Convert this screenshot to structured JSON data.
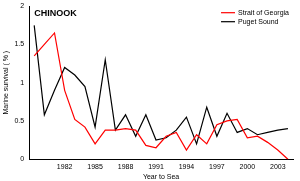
{
  "chart_data": {
    "type": "line",
    "title": "CHINOOK",
    "x_label": "Year to Sea",
    "y_label": "Marine survival ( % )",
    "x": [
      1979,
      1980,
      1981,
      1982,
      1983,
      1984,
      1985,
      1986,
      1987,
      1988,
      1989,
      1990,
      1991,
      1992,
      1993,
      1994,
      1995,
      1996,
      1997,
      1998,
      1999,
      2000,
      2001,
      2002,
      2003,
      2004
    ],
    "series": [
      {
        "name": "Strait of Georgia",
        "color": "#ff0000",
        "values": [
          1.35,
          1.5,
          1.65,
          0.9,
          0.52,
          0.42,
          0.2,
          0.38,
          0.38,
          0.4,
          0.38,
          0.18,
          0.15,
          0.3,
          0.35,
          0.12,
          0.32,
          0.2,
          0.45,
          0.5,
          0.52,
          0.28,
          0.3,
          0.22,
          0.12,
          0.0
        ]
      },
      {
        "name": "Puget Sound",
        "color": "#000000",
        "values": [
          1.75,
          0.58,
          0.9,
          1.2,
          1.1,
          0.95,
          0.42,
          1.3,
          0.38,
          0.58,
          0.3,
          0.58,
          0.25,
          0.28,
          0.38,
          0.55,
          0.2,
          0.68,
          0.3,
          0.6,
          0.35,
          0.4,
          0.32,
          0.35,
          0.38,
          0.4
        ]
      }
    ],
    "xlim": [
      1978.5,
      2004.5
    ],
    "xticks": [
      1982,
      1985,
      1988,
      1991,
      1994,
      1997,
      2000,
      2003
    ],
    "ylim": [
      0,
      2
    ],
    "yticks": [
      0,
      0.5,
      1,
      1.5,
      2
    ],
    "grid": false,
    "legend": "upper right"
  }
}
